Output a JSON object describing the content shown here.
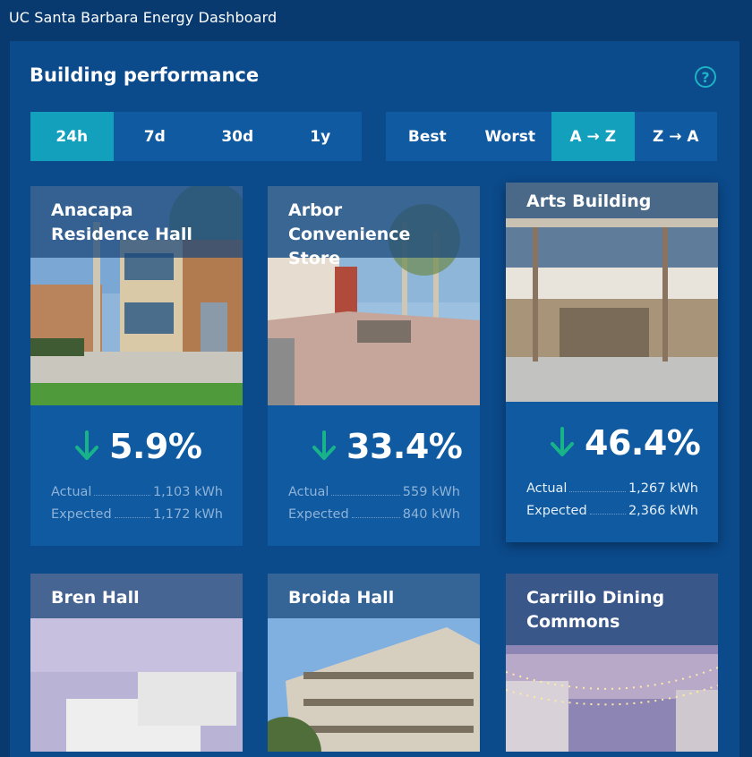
{
  "app": {
    "title": "UC Santa Barbara Energy Dashboard"
  },
  "panel": {
    "title": "Building performance",
    "help_icon": "question-circle-icon",
    "help_glyph": "?"
  },
  "range_tabs": [
    {
      "label": "24h",
      "active": true
    },
    {
      "label": "7d",
      "active": false
    },
    {
      "label": "30d",
      "active": false
    },
    {
      "label": "1y",
      "active": false
    }
  ],
  "sort_tabs": [
    {
      "label": "Best",
      "active": false
    },
    {
      "label": "Worst",
      "active": false
    },
    {
      "label": "A → Z",
      "active": true
    },
    {
      "label": "Z → A",
      "active": false
    }
  ],
  "cards": [
    {
      "name": "Anacapa Residence Hall",
      "trend_icon": "arrow-down-icon",
      "percent": "5.9%",
      "actual_label": "Actual",
      "actual": "1,103 kWh",
      "expected_label": "Expected",
      "expected": "1,172 kWh"
    },
    {
      "name": "Arbor Convenience Store",
      "trend_icon": "arrow-down-icon",
      "percent": "33.4%",
      "actual_label": "Actual",
      "actual": "559 kWh",
      "expected_label": "Expected",
      "expected": "840 kWh"
    },
    {
      "name": "Arts Building",
      "trend_icon": "arrow-down-icon",
      "percent": "46.4%",
      "actual_label": "Actual",
      "actual": "1,267 kWh",
      "expected_label": "Expected",
      "expected": "2,366 kWh"
    },
    {
      "name": "Bren Hall"
    },
    {
      "name": "Broida Hall"
    },
    {
      "name": "Carrillo Dining Commons"
    }
  ],
  "colors": {
    "background": "#083a70",
    "panel": "#0b4a8b",
    "tile": "#0f5aa0",
    "accent": "#13a0bd",
    "arrow": "#19b38a"
  }
}
